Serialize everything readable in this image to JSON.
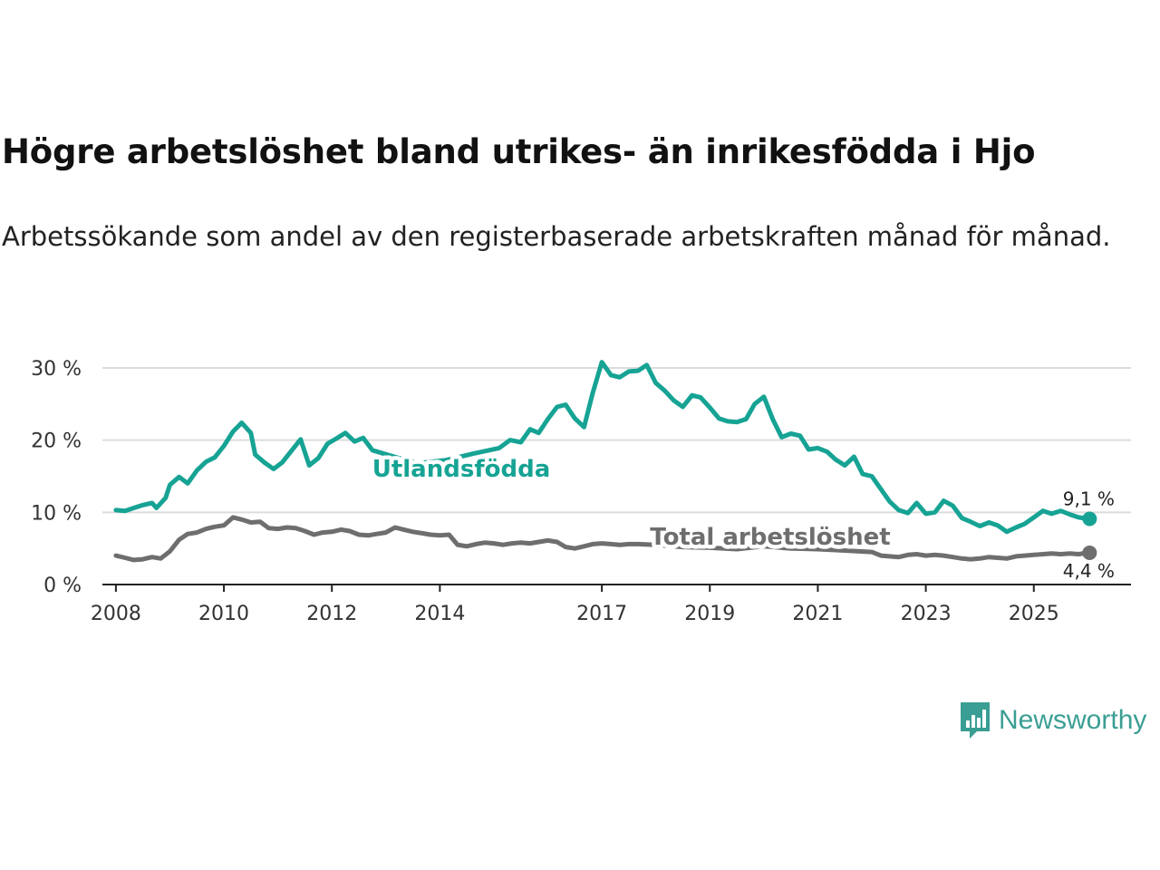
{
  "title": "Högre arbetslöshet bland utrikes- än inrikesfödda i Hjo",
  "subtitle": "Arbetssökande som andel av den registerbaserade arbetskraften månad för månad.",
  "brand": {
    "name": "Newsworthy",
    "color": "#3a9e94",
    "icon": "newsworthy-logo-icon"
  },
  "chart_data": {
    "type": "line",
    "y_unit": "%",
    "ylim": [
      0,
      32
    ],
    "y_ticks": [
      0,
      10,
      20,
      30
    ],
    "y_tick_labels": [
      "0 %",
      "10 %",
      "20 %",
      "30 %"
    ],
    "x_range": [
      2007.75,
      2026.8
    ],
    "x_ticks": [
      2008,
      2010,
      2012,
      2014,
      2017,
      2019,
      2021,
      2023,
      2025
    ],
    "x_tick_labels": [
      "2008",
      "2010",
      "2012",
      "2014",
      "2017",
      "2019",
      "2021",
      "2023",
      "2025"
    ],
    "grid": true,
    "series": [
      {
        "name": "Utlandsfödda",
        "label": "Utlandsfödda",
        "color": "#16a394",
        "end_label": "9,1 %",
        "end_value": 9.1,
        "points": [
          [
            2008.0,
            10.3
          ],
          [
            2008.17,
            10.2
          ],
          [
            2008.33,
            10.6
          ],
          [
            2008.5,
            11.0
          ],
          [
            2008.67,
            11.3
          ],
          [
            2008.75,
            10.6
          ],
          [
            2008.92,
            12.0
          ],
          [
            2009.0,
            13.8
          ],
          [
            2009.17,
            14.9
          ],
          [
            2009.33,
            14.0
          ],
          [
            2009.5,
            15.8
          ],
          [
            2009.67,
            17.0
          ],
          [
            2009.83,
            17.6
          ],
          [
            2010.0,
            19.2
          ],
          [
            2010.17,
            21.2
          ],
          [
            2010.33,
            22.4
          ],
          [
            2010.5,
            21.0
          ],
          [
            2010.58,
            18.0
          ],
          [
            2010.75,
            16.9
          ],
          [
            2010.92,
            16.0
          ],
          [
            2011.08,
            16.9
          ],
          [
            2011.25,
            18.5
          ],
          [
            2011.42,
            20.1
          ],
          [
            2011.58,
            16.5
          ],
          [
            2011.75,
            17.5
          ],
          [
            2011.92,
            19.5
          ],
          [
            2012.08,
            20.2
          ],
          [
            2012.25,
            21.0
          ],
          [
            2012.42,
            19.8
          ],
          [
            2012.58,
            20.3
          ],
          [
            2012.75,
            18.6
          ],
          [
            2013.2,
            17.6
          ],
          [
            2013.6,
            16.8
          ],
          [
            2014.1,
            17.2
          ],
          [
            2014.6,
            18.1
          ],
          [
            2015.1,
            18.9
          ],
          [
            2015.3,
            20.0
          ],
          [
            2015.5,
            19.7
          ],
          [
            2015.67,
            21.5
          ],
          [
            2015.83,
            21.0
          ],
          [
            2016.0,
            22.9
          ],
          [
            2016.17,
            24.6
          ],
          [
            2016.33,
            24.9
          ],
          [
            2016.5,
            23.0
          ],
          [
            2016.67,
            21.8
          ],
          [
            2016.83,
            26.5
          ],
          [
            2017.0,
            30.8
          ],
          [
            2017.17,
            29.0
          ],
          [
            2017.33,
            28.7
          ],
          [
            2017.5,
            29.5
          ],
          [
            2017.67,
            29.6
          ],
          [
            2017.83,
            30.4
          ],
          [
            2018.0,
            27.9
          ],
          [
            2018.17,
            26.8
          ],
          [
            2018.33,
            25.5
          ],
          [
            2018.5,
            24.6
          ],
          [
            2018.67,
            26.2
          ],
          [
            2018.83,
            25.9
          ],
          [
            2019.0,
            24.5
          ],
          [
            2019.17,
            23.0
          ],
          [
            2019.33,
            22.6
          ],
          [
            2019.5,
            22.5
          ],
          [
            2019.67,
            22.9
          ],
          [
            2019.83,
            25.0
          ],
          [
            2020.0,
            26.0
          ],
          [
            2020.17,
            22.8
          ],
          [
            2020.33,
            20.4
          ],
          [
            2020.5,
            20.9
          ],
          [
            2020.67,
            20.6
          ],
          [
            2020.83,
            18.7
          ],
          [
            2021.0,
            18.9
          ],
          [
            2021.17,
            18.4
          ],
          [
            2021.33,
            17.3
          ],
          [
            2021.5,
            16.5
          ],
          [
            2021.67,
            17.7
          ],
          [
            2021.83,
            15.3
          ],
          [
            2022.0,
            15.0
          ],
          [
            2022.17,
            13.2
          ],
          [
            2022.33,
            11.5
          ],
          [
            2022.5,
            10.3
          ],
          [
            2022.67,
            9.9
          ],
          [
            2022.83,
            11.3
          ],
          [
            2023.0,
            9.8
          ],
          [
            2023.17,
            10.0
          ],
          [
            2023.33,
            11.6
          ],
          [
            2023.5,
            10.9
          ],
          [
            2023.67,
            9.2
          ],
          [
            2023.83,
            8.7
          ],
          [
            2024.0,
            8.1
          ],
          [
            2024.17,
            8.6
          ],
          [
            2024.33,
            8.2
          ],
          [
            2024.5,
            7.3
          ],
          [
            2024.67,
            7.9
          ],
          [
            2024.83,
            8.4
          ],
          [
            2025.0,
            9.3
          ],
          [
            2025.17,
            10.2
          ],
          [
            2025.33,
            9.8
          ],
          [
            2025.5,
            10.2
          ],
          [
            2025.67,
            9.7
          ],
          [
            2025.83,
            9.3
          ],
          [
            2026.0,
            9.1
          ]
        ]
      },
      {
        "name": "Total arbetslöshet",
        "label": "Total arbetslöshet",
        "color": "#6e6e6e",
        "end_label": "4,4 %",
        "end_value": 4.4,
        "points": [
          [
            2008.0,
            4.0
          ],
          [
            2008.17,
            3.7
          ],
          [
            2008.33,
            3.4
          ],
          [
            2008.5,
            3.5
          ],
          [
            2008.67,
            3.8
          ],
          [
            2008.83,
            3.6
          ],
          [
            2009.0,
            4.6
          ],
          [
            2009.17,
            6.2
          ],
          [
            2009.33,
            7.0
          ],
          [
            2009.5,
            7.2
          ],
          [
            2009.67,
            7.7
          ],
          [
            2009.83,
            8.0
          ],
          [
            2010.0,
            8.2
          ],
          [
            2010.17,
            9.3
          ],
          [
            2010.33,
            9.0
          ],
          [
            2010.5,
            8.6
          ],
          [
            2010.67,
            8.7
          ],
          [
            2010.83,
            7.8
          ],
          [
            2011.0,
            7.7
          ],
          [
            2011.17,
            7.9
          ],
          [
            2011.33,
            7.8
          ],
          [
            2011.5,
            7.4
          ],
          [
            2011.67,
            6.9
          ],
          [
            2011.83,
            7.2
          ],
          [
            2012.0,
            7.3
          ],
          [
            2012.17,
            7.6
          ],
          [
            2012.33,
            7.4
          ],
          [
            2012.5,
            6.9
          ],
          [
            2012.67,
            6.8
          ],
          [
            2012.83,
            7.0
          ],
          [
            2013.0,
            7.2
          ],
          [
            2013.17,
            7.9
          ],
          [
            2013.33,
            7.6
          ],
          [
            2013.5,
            7.3
          ],
          [
            2013.67,
            7.1
          ],
          [
            2013.83,
            6.9
          ],
          [
            2014.0,
            6.8
          ],
          [
            2014.17,
            6.9
          ],
          [
            2014.33,
            5.5
          ],
          [
            2014.5,
            5.3
          ],
          [
            2014.67,
            5.6
          ],
          [
            2014.83,
            5.8
          ],
          [
            2015.0,
            5.7
          ],
          [
            2015.17,
            5.5
          ],
          [
            2015.33,
            5.7
          ],
          [
            2015.5,
            5.8
          ],
          [
            2015.67,
            5.7
          ],
          [
            2015.83,
            5.9
          ],
          [
            2016.0,
            6.1
          ],
          [
            2016.17,
            5.9
          ],
          [
            2016.33,
            5.2
          ],
          [
            2016.5,
            5.0
          ],
          [
            2016.67,
            5.3
          ],
          [
            2016.83,
            5.6
          ],
          [
            2017.0,
            5.7
          ],
          [
            2017.17,
            5.6
          ],
          [
            2017.33,
            5.5
          ],
          [
            2017.5,
            5.6
          ],
          [
            2017.67,
            5.6
          ],
          [
            2018.0,
            5.5
          ],
          [
            2018.5,
            5.2
          ],
          [
            2019.0,
            5.1
          ],
          [
            2019.5,
            4.9
          ],
          [
            2020.0,
            5.3
          ],
          [
            2020.5,
            5.0
          ],
          [
            2021.0,
            4.9
          ],
          [
            2021.5,
            4.7
          ],
          [
            2022.0,
            4.5
          ],
          [
            2022.17,
            4.0
          ],
          [
            2022.33,
            3.9
          ],
          [
            2022.5,
            3.8
          ],
          [
            2022.67,
            4.1
          ],
          [
            2022.83,
            4.2
          ],
          [
            2023.0,
            4.0
          ],
          [
            2023.17,
            4.1
          ],
          [
            2023.33,
            4.0
          ],
          [
            2023.5,
            3.8
          ],
          [
            2023.67,
            3.6
          ],
          [
            2023.83,
            3.5
          ],
          [
            2024.0,
            3.6
          ],
          [
            2024.17,
            3.8
          ],
          [
            2024.33,
            3.7
          ],
          [
            2024.5,
            3.6
          ],
          [
            2024.67,
            3.9
          ],
          [
            2024.83,
            4.0
          ],
          [
            2025.0,
            4.1
          ],
          [
            2025.17,
            4.2
          ],
          [
            2025.33,
            4.3
          ],
          [
            2025.5,
            4.2
          ],
          [
            2025.67,
            4.3
          ],
          [
            2025.83,
            4.2
          ],
          [
            2026.0,
            4.4
          ]
        ]
      }
    ]
  }
}
